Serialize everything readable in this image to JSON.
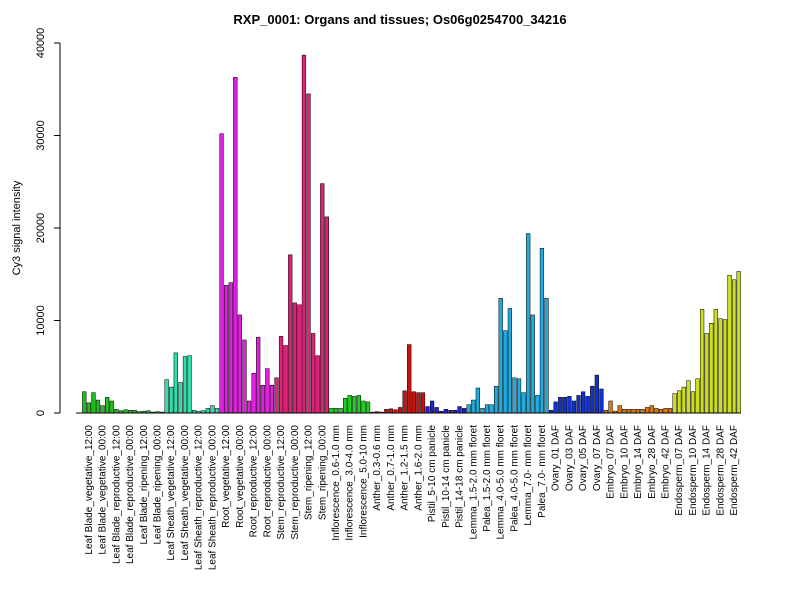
{
  "chart_data": {
    "type": "bar",
    "title": "RXP_0001: Organs and tissues; Os06g0254700_34216",
    "xlabel": "",
    "ylabel": "Cy3 signal intensity",
    "ylim": [
      0,
      40000
    ],
    "yticks": [
      0,
      10000,
      20000,
      30000,
      40000
    ],
    "grid": false,
    "legend": "none",
    "groups": [
      {
        "label": "Leaf Blade_vegetative_12:00",
        "color": "#22bb22",
        "values": [
          2300,
          1100,
          2200
        ]
      },
      {
        "label": "Leaf Blade_vegetative_00:00",
        "color": "#22bb22",
        "values": [
          1400,
          800,
          1700
        ]
      },
      {
        "label": "Leaf Blade_reproductive_12:00",
        "color": "#22bb22",
        "values": [
          1300,
          400,
          250
        ]
      },
      {
        "label": "Leaf Blade_reproductive_00:00",
        "color": "#22bb22",
        "values": [
          350,
          300,
          300
        ]
      },
      {
        "label": "Leaf Blade_ripening_12:00",
        "color": "#22bb22",
        "values": [
          150,
          200,
          250
        ]
      },
      {
        "label": "Leaf Blade_ripening_00:00",
        "color": "#22bb22",
        "values": [
          100,
          150,
          100
        ]
      },
      {
        "label": "Leaf Sheath_vegetative_12:00",
        "color": "#33ddaa",
        "values": [
          3600,
          2800,
          6500
        ]
      },
      {
        "label": "Leaf Sheath_vegetative_00:00",
        "color": "#33ddaa",
        "values": [
          3300,
          6100,
          6200
        ]
      },
      {
        "label": "Leaf Sheath_reproductive_12:00",
        "color": "#33ddaa",
        "values": [
          300,
          200,
          250
        ]
      },
      {
        "label": "Leaf Sheath_reproductive_00:00",
        "color": "#33ddaa",
        "values": [
          500,
          800,
          500
        ]
      },
      {
        "label": "Root_vegetative_12:00",
        "color": "#dd22dd",
        "values": [
          30200,
          13800,
          14100
        ]
      },
      {
        "label": "Root_vegetative_00:00",
        "color": "#dd22dd",
        "values": [
          36300,
          10600,
          7900
        ]
      },
      {
        "label": "Root_reproductive_12:00",
        "color": "#dd22dd",
        "values": [
          1300,
          4300,
          8200
        ]
      },
      {
        "label": "Root_reproductive_00:00",
        "color": "#dd22dd",
        "values": [
          3000,
          4800,
          3000
        ]
      },
      {
        "label": "Stem_reproductive_12:00",
        "color": "#dd2277",
        "values": [
          3800,
          8300,
          7300
        ]
      },
      {
        "label": "Stem_reproductive_00:00",
        "color": "#dd2277",
        "values": [
          17100,
          11900,
          11700
        ]
      },
      {
        "label": "Stem_ripening_12:00",
        "color": "#dd2277",
        "values": [
          38700,
          34500,
          8600
        ]
      },
      {
        "label": "Stem_ripening_00:00",
        "color": "#dd2277",
        "values": [
          6200,
          24800,
          21200
        ]
      },
      {
        "label": "Inflorescence_0.6-1.0 mm",
        "color": "#22cc22",
        "values": [
          500,
          500,
          500
        ]
      },
      {
        "label": "Inflorescence_3.0-4.0 mm",
        "color": "#22cc22",
        "values": [
          1600,
          1900,
          1800
        ]
      },
      {
        "label": "Inflorescence_5.0-10 mm",
        "color": "#22cc22",
        "values": [
          1900,
          1300,
          1200
        ]
      },
      {
        "label": "Anther_0.3-0.6 mm",
        "color": "#cc1111",
        "values": [
          100,
          150,
          100
        ]
      },
      {
        "label": "Anther_0.7-1.0 mm",
        "color": "#cc1111",
        "values": [
          400,
          450,
          350
        ]
      },
      {
        "label": "Anther_1.2-1.5 mm",
        "color": "#cc1111",
        "values": [
          600,
          2400,
          7400
        ]
      },
      {
        "label": "Anther_1.6-2.0 mm",
        "color": "#cc1111",
        "values": [
          2300,
          2200,
          2200
        ]
      },
      {
        "label": "Pistil_5-10 cm panicle",
        "color": "#2222cc",
        "values": [
          700,
          1300,
          600
        ]
      },
      {
        "label": "Pistil_10-14 cm panicle",
        "color": "#2222cc",
        "values": [
          200,
          400,
          300
        ]
      },
      {
        "label": "Pistil_14-18 cm panicle",
        "color": "#2222cc",
        "values": [
          300,
          700,
          500
        ]
      },
      {
        "label": "Lemma_1.5-2.0 mm floret",
        "color": "#22aadd",
        "values": [
          900,
          1400,
          2700
        ]
      },
      {
        "label": "Palea_1.5-2.0 mm floret",
        "color": "#22aadd",
        "values": [
          500,
          900,
          900
        ]
      },
      {
        "label": "Lemma_4.0-5.0 mm floret",
        "color": "#22aadd",
        "values": [
          2900,
          12400,
          8900
        ]
      },
      {
        "label": "Palea_4.0-5.0 mm floret",
        "color": "#22aadd",
        "values": [
          11300,
          3800,
          3700
        ]
      },
      {
        "label": "Lemma_7.0- mm floret",
        "color": "#22aadd",
        "values": [
          2200,
          19400,
          10600
        ]
      },
      {
        "label": "Palea_7.0- mm floret",
        "color": "#22aadd",
        "values": [
          1900,
          17800,
          12400
        ]
      },
      {
        "label": "Ovary_01 DAF",
        "color": "#1133cc",
        "values": [
          300,
          1200,
          1700
        ]
      },
      {
        "label": "Ovary_03 DAF",
        "color": "#1133cc",
        "values": [
          1700,
          1800,
          1300
        ]
      },
      {
        "label": "Ovary_05 DAF",
        "color": "#1133cc",
        "values": [
          1900,
          2300,
          1800
        ]
      },
      {
        "label": "Ovary_07 DAF",
        "color": "#1133cc",
        "values": [
          2900,
          4100,
          2600
        ]
      },
      {
        "label": "Embryo_07 DAF",
        "color": "#dd7711",
        "values": [
          300,
          1300,
          200
        ]
      },
      {
        "label": "Embryo_10 DAF",
        "color": "#dd7711",
        "values": [
          800,
          400,
          400
        ]
      },
      {
        "label": "Embryo_14 DAF",
        "color": "#dd7711",
        "values": [
          400,
          400,
          400
        ]
      },
      {
        "label": "Embryo_28 DAF",
        "color": "#dd7711",
        "values": [
          600,
          800,
          500
        ]
      },
      {
        "label": "Embryo_42 DAF",
        "color": "#dd7711",
        "values": [
          400,
          500,
          500
        ]
      },
      {
        "label": "Endosperm_07 DAF",
        "color": "#ccdd22",
        "values": [
          2100,
          2400,
          2800
        ]
      },
      {
        "label": "Endosperm_10 DAF",
        "color": "#ccdd22",
        "values": [
          3500,
          2300,
          3700
        ]
      },
      {
        "label": "Endosperm_14 DAF",
        "color": "#ccdd22",
        "values": [
          11200,
          8600,
          9700
        ]
      },
      {
        "label": "Endosperm_28 DAF",
        "color": "#ccdd22",
        "values": [
          11200,
          10200,
          10100
        ]
      },
      {
        "label": "Endosperm_42 DAF",
        "color": "#ccdd22",
        "values": [
          14900,
          14400,
          15300
        ]
      }
    ]
  }
}
